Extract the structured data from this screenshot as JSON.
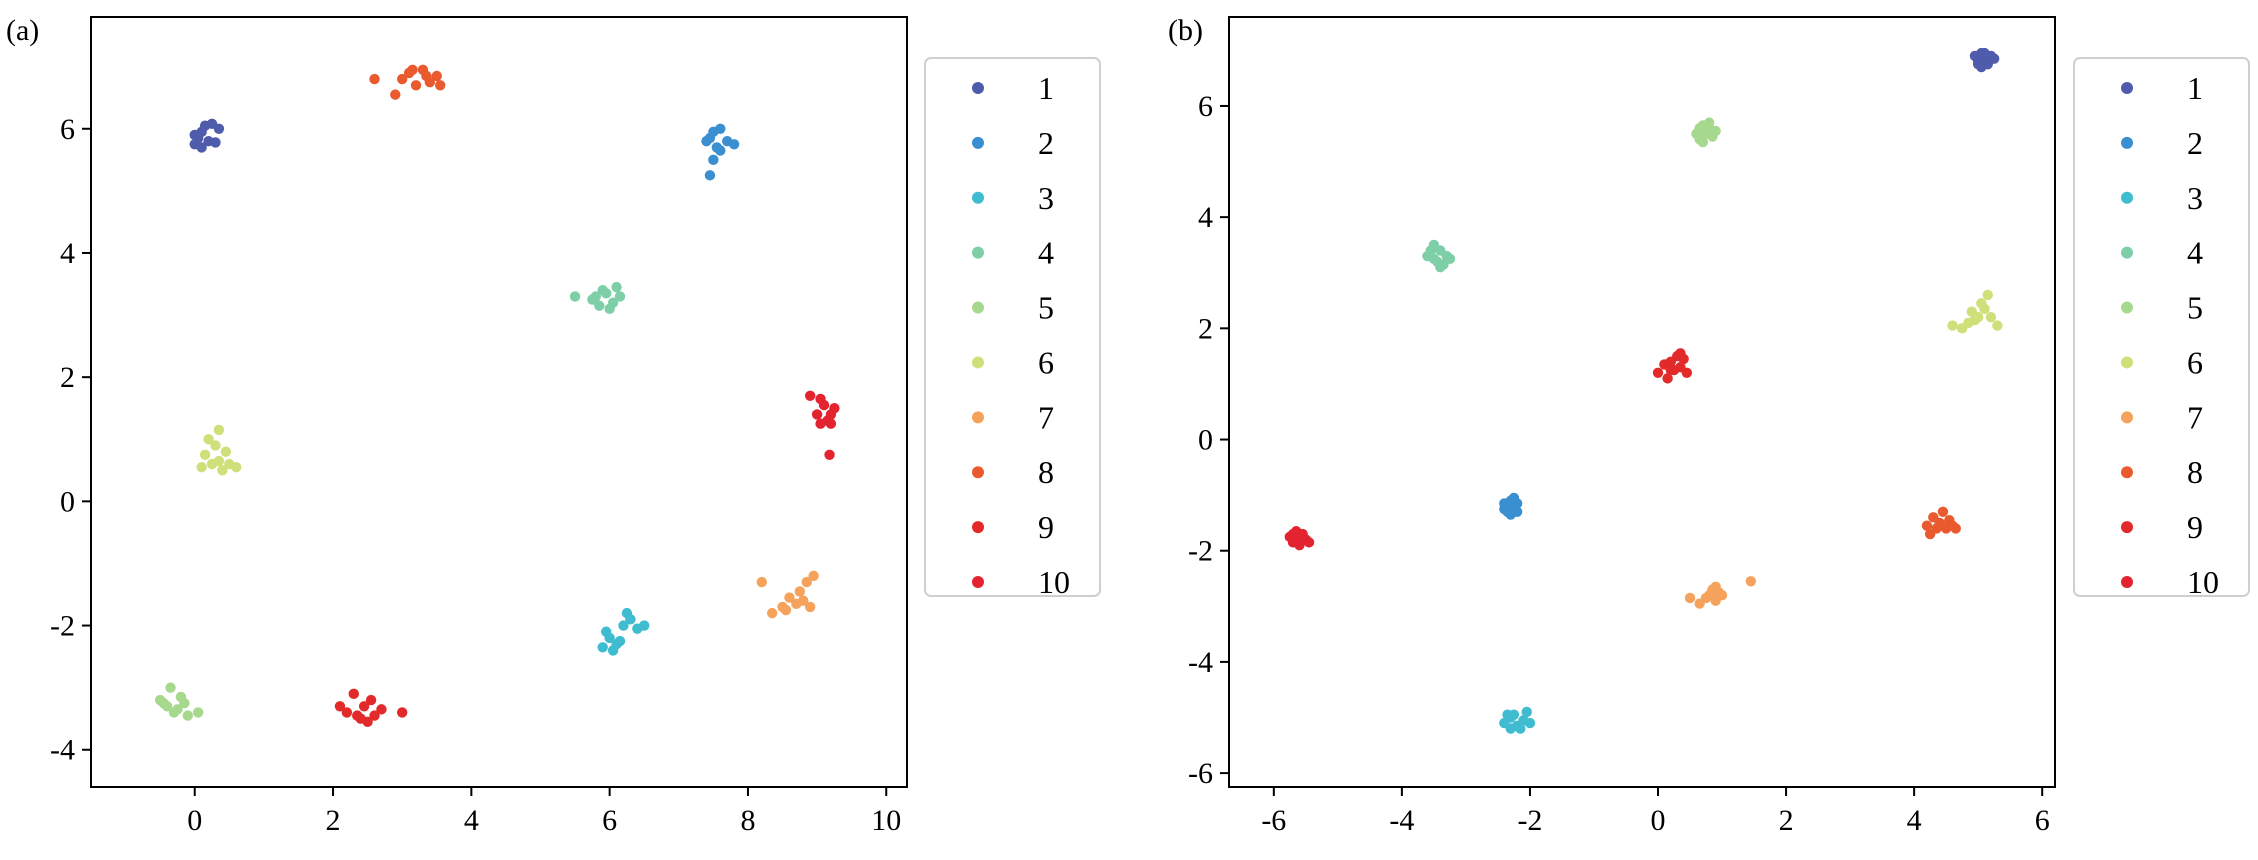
{
  "chart_data": [
    {
      "type": "scatter",
      "panel_label": "(a)",
      "xlim": [
        -1.5,
        10.3
      ],
      "ylim": [
        -4.6,
        7.8
      ],
      "xticks": [
        0,
        2,
        4,
        6,
        8,
        10
      ],
      "xtick_labels": [
        "0",
        "2",
        "4",
        "6",
        "8",
        "10"
      ],
      "yticks": [
        -4,
        -2,
        0,
        2,
        4,
        6
      ],
      "ytick_labels": [
        "-4",
        "-2",
        "0",
        "2",
        "4",
        "6"
      ],
      "legend_position": "outside-right",
      "series": [
        {
          "name": "1",
          "color": "#4f5bab",
          "points": [
            [
              0.0,
              5.75
            ],
            [
              0.05,
              5.85
            ],
            [
              0.1,
              5.95
            ],
            [
              0.15,
              6.05
            ],
            [
              0.25,
              6.08
            ],
            [
              0.35,
              6.0
            ],
            [
              0.2,
              5.8
            ],
            [
              0.1,
              5.7
            ],
            [
              0.3,
              5.78
            ],
            [
              0.0,
              5.9
            ]
          ]
        },
        {
          "name": "2",
          "color": "#3a8fd0",
          "points": [
            [
              7.45,
              5.85
            ],
            [
              7.5,
              5.95
            ],
            [
              7.6,
              6.0
            ],
            [
              7.7,
              5.8
            ],
            [
              7.8,
              5.75
            ],
            [
              7.6,
              5.65
            ],
            [
              7.5,
              5.5
            ],
            [
              7.45,
              5.25
            ],
            [
              7.55,
              5.7
            ],
            [
              7.4,
              5.8
            ]
          ]
        },
        {
          "name": "3",
          "color": "#40bcd0",
          "points": [
            [
              5.9,
              -2.35
            ],
            [
              6.0,
              -2.2
            ],
            [
              6.1,
              -2.3
            ],
            [
              6.2,
              -2.0
            ],
            [
              6.3,
              -1.9
            ],
            [
              6.4,
              -2.05
            ],
            [
              6.5,
              -2.0
            ],
            [
              5.95,
              -2.1
            ],
            [
              6.05,
              -2.4
            ],
            [
              6.15,
              -2.25
            ],
            [
              6.25,
              -1.8
            ]
          ]
        },
        {
          "name": "4",
          "color": "#7ecfa8",
          "points": [
            [
              5.5,
              3.3
            ],
            [
              5.75,
              3.25
            ],
            [
              5.85,
              3.15
            ],
            [
              5.95,
              3.35
            ],
            [
              6.05,
              3.2
            ],
            [
              6.15,
              3.3
            ],
            [
              6.1,
              3.45
            ],
            [
              5.9,
              3.4
            ],
            [
              6.0,
              3.1
            ],
            [
              5.8,
              3.3
            ]
          ]
        },
        {
          "name": "5",
          "color": "#a6d98e",
          "points": [
            [
              -0.5,
              -3.2
            ],
            [
              -0.4,
              -3.3
            ],
            [
              -0.35,
              -3.0
            ],
            [
              -0.3,
              -3.4
            ],
            [
              -0.2,
              -3.15
            ],
            [
              -0.15,
              -3.25
            ],
            [
              -0.1,
              -3.45
            ],
            [
              0.05,
              -3.4
            ],
            [
              -0.25,
              -3.35
            ],
            [
              -0.45,
              -3.25
            ]
          ]
        },
        {
          "name": "6",
          "color": "#cfdf7a",
          "points": [
            [
              0.1,
              0.55
            ],
            [
              0.15,
              0.75
            ],
            [
              0.25,
              0.6
            ],
            [
              0.3,
              0.9
            ],
            [
              0.35,
              1.15
            ],
            [
              0.4,
              0.5
            ],
            [
              0.45,
              0.8
            ],
            [
              0.5,
              0.6
            ],
            [
              0.6,
              0.55
            ],
            [
              0.2,
              1.0
            ],
            [
              0.35,
              0.65
            ]
          ]
        },
        {
          "name": "7",
          "color": "#f5a35c",
          "points": [
            [
              8.2,
              -1.3
            ],
            [
              8.35,
              -1.8
            ],
            [
              8.5,
              -1.7
            ],
            [
              8.6,
              -1.55
            ],
            [
              8.7,
              -1.65
            ],
            [
              8.8,
              -1.6
            ],
            [
              8.85,
              -1.3
            ],
            [
              8.95,
              -1.2
            ],
            [
              8.9,
              -1.7
            ],
            [
              8.55,
              -1.75
            ],
            [
              8.75,
              -1.45
            ]
          ]
        },
        {
          "name": "8",
          "color": "#ea5a2f",
          "points": [
            [
              2.6,
              6.8
            ],
            [
              2.9,
              6.55
            ],
            [
              3.0,
              6.8
            ],
            [
              3.1,
              6.9
            ],
            [
              3.2,
              6.7
            ],
            [
              3.3,
              6.95
            ],
            [
              3.4,
              6.75
            ],
            [
              3.5,
              6.85
            ],
            [
              3.55,
              6.7
            ],
            [
              3.15,
              6.95
            ],
            [
              3.35,
              6.85
            ]
          ]
        },
        {
          "name": "9",
          "color": "#e32a2a",
          "points": [
            [
              2.1,
              -3.3
            ],
            [
              2.2,
              -3.4
            ],
            [
              2.3,
              -3.1
            ],
            [
              2.4,
              -3.5
            ],
            [
              2.45,
              -3.3
            ],
            [
              2.5,
              -3.55
            ],
            [
              2.55,
              -3.2
            ],
            [
              2.6,
              -3.45
            ],
            [
              2.7,
              -3.35
            ],
            [
              3.0,
              -3.4
            ],
            [
              2.35,
              -3.45
            ]
          ]
        },
        {
          "name": "10",
          "color": "#e32430",
          "points": [
            [
              8.9,
              1.7
            ],
            [
              9.0,
              1.4
            ],
            [
              9.05,
              1.25
            ],
            [
              9.1,
              1.55
            ],
            [
              9.15,
              1.3
            ],
            [
              9.2,
              1.4
            ],
            [
              9.25,
              1.5
            ],
            [
              9.18,
              0.75
            ],
            [
              9.05,
              1.65
            ],
            [
              9.2,
              1.25
            ]
          ]
        }
      ]
    },
    {
      "type": "scatter",
      "panel_label": "(b)",
      "xlim": [
        -6.7,
        6.2
      ],
      "ylim": [
        -6.25,
        7.6
      ],
      "xticks": [
        -6,
        -4,
        -2,
        0,
        2,
        4,
        6
      ],
      "xtick_labels": [
        "-6",
        "-4",
        "-2",
        "0",
        "2",
        "4",
        "6"
      ],
      "yticks": [
        -6,
        -4,
        -2,
        0,
        2,
        4,
        6
      ],
      "ytick_labels": [
        "-6",
        "-4",
        "-2",
        "0",
        "2",
        "4",
        "6"
      ],
      "legend_position": "outside-right",
      "series": [
        {
          "name": "1",
          "color": "#4f5bab",
          "points": [
            [
              4.95,
              6.9
            ],
            [
              5.0,
              6.8
            ],
            [
              5.05,
              6.95
            ],
            [
              5.1,
              6.85
            ],
            [
              5.15,
              6.75
            ],
            [
              5.2,
              6.9
            ],
            [
              5.25,
              6.85
            ],
            [
              5.0,
              6.75
            ],
            [
              5.1,
              6.95
            ],
            [
              5.05,
              6.7
            ]
          ]
        },
        {
          "name": "2",
          "color": "#3a8fd0",
          "points": [
            [
              -2.4,
              -1.15
            ],
            [
              -2.35,
              -1.3
            ],
            [
              -2.3,
              -1.1
            ],
            [
              -2.25,
              -1.25
            ],
            [
              -2.2,
              -1.15
            ],
            [
              -2.3,
              -1.35
            ],
            [
              -2.35,
              -1.2
            ],
            [
              -2.25,
              -1.05
            ],
            [
              -2.2,
              -1.3
            ],
            [
              -2.4,
              -1.25
            ]
          ]
        },
        {
          "name": "3",
          "color": "#40bcd0",
          "points": [
            [
              -2.4,
              -5.1
            ],
            [
              -2.3,
              -5.2
            ],
            [
              -2.25,
              -4.95
            ],
            [
              -2.2,
              -5.15
            ],
            [
              -2.1,
              -5.05
            ],
            [
              -2.05,
              -4.9
            ],
            [
              -2.35,
              -4.95
            ],
            [
              -2.15,
              -5.2
            ],
            [
              -2.3,
              -5.0
            ],
            [
              -2.0,
              -5.1
            ]
          ]
        },
        {
          "name": "4",
          "color": "#7ecfa8",
          "points": [
            [
              -3.6,
              3.3
            ],
            [
              -3.5,
              3.5
            ],
            [
              -3.45,
              3.2
            ],
            [
              -3.4,
              3.4
            ],
            [
              -3.35,
              3.15
            ],
            [
              -3.3,
              3.3
            ],
            [
              -3.25,
              3.25
            ],
            [
              -3.5,
              3.25
            ],
            [
              -3.4,
              3.1
            ],
            [
              -3.55,
              3.4
            ]
          ]
        },
        {
          "name": "5",
          "color": "#a6d98e",
          "points": [
            [
              0.6,
              5.5
            ],
            [
              0.65,
              5.4
            ],
            [
              0.7,
              5.65
            ],
            [
              0.75,
              5.5
            ],
            [
              0.8,
              5.6
            ],
            [
              0.85,
              5.45
            ],
            [
              0.9,
              5.55
            ],
            [
              0.7,
              5.35
            ],
            [
              0.8,
              5.7
            ],
            [
              0.65,
              5.6
            ]
          ]
        },
        {
          "name": "6",
          "color": "#cfdf7a",
          "points": [
            [
              4.6,
              2.05
            ],
            [
              4.75,
              2.0
            ],
            [
              4.85,
              2.1
            ],
            [
              4.9,
              2.3
            ],
            [
              5.0,
              2.2
            ],
            [
              5.05,
              2.45
            ],
            [
              5.1,
              2.35
            ],
            [
              5.15,
              2.6
            ],
            [
              5.2,
              2.2
            ],
            [
              5.3,
              2.05
            ],
            [
              4.95,
              2.15
            ]
          ]
        },
        {
          "name": "7",
          "color": "#f5a35c",
          "points": [
            [
              0.5,
              -2.85
            ],
            [
              0.65,
              -2.95
            ],
            [
              0.8,
              -2.8
            ],
            [
              0.85,
              -2.7
            ],
            [
              0.9,
              -2.9
            ],
            [
              0.95,
              -2.75
            ],
            [
              1.0,
              -2.8
            ],
            [
              0.75,
              -2.85
            ],
            [
              0.9,
              -2.65
            ],
            [
              1.45,
              -2.55
            ]
          ]
        },
        {
          "name": "8",
          "color": "#ea5a2f",
          "points": [
            [
              4.2,
              -1.55
            ],
            [
              4.25,
              -1.7
            ],
            [
              4.3,
              -1.4
            ],
            [
              4.35,
              -1.6
            ],
            [
              4.4,
              -1.5
            ],
            [
              4.45,
              -1.3
            ],
            [
              4.5,
              -1.6
            ],
            [
              4.55,
              -1.45
            ],
            [
              4.6,
              -1.55
            ],
            [
              4.65,
              -1.6
            ]
          ]
        },
        {
          "name": "9",
          "color": "#e32a2a",
          "points": [
            [
              0.0,
              1.2
            ],
            [
              0.1,
              1.35
            ],
            [
              0.15,
              1.1
            ],
            [
              0.2,
              1.4
            ],
            [
              0.25,
              1.25
            ],
            [
              0.3,
              1.5
            ],
            [
              0.35,
              1.3
            ],
            [
              0.4,
              1.45
            ],
            [
              0.45,
              1.2
            ],
            [
              0.2,
              1.25
            ],
            [
              0.35,
              1.55
            ]
          ]
        },
        {
          "name": "10",
          "color": "#e32430",
          "points": [
            [
              -5.75,
              -1.75
            ],
            [
              -5.7,
              -1.85
            ],
            [
              -5.65,
              -1.65
            ],
            [
              -5.6,
              -1.9
            ],
            [
              -5.55,
              -1.7
            ],
            [
              -5.5,
              -1.8
            ],
            [
              -5.45,
              -1.85
            ],
            [
              -5.65,
              -1.8
            ],
            [
              -5.6,
              -1.7
            ],
            [
              -5.7,
              -1.7
            ]
          ]
        }
      ]
    }
  ]
}
